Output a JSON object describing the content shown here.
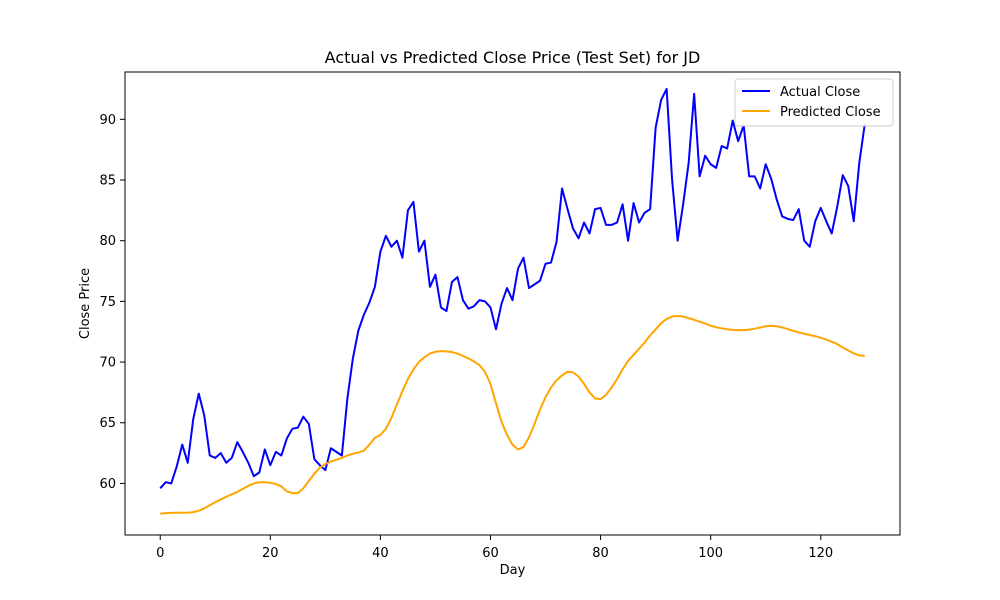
{
  "chart_data": {
    "type": "line",
    "title": "Actual vs Predicted Close Price (Test Set) for JD",
    "xlabel": "Day",
    "ylabel": "Close Price",
    "xlim": [
      -6.4,
      134.4
    ],
    "ylim": [
      55.75,
      93.9
    ],
    "xticks": [
      0,
      20,
      40,
      60,
      80,
      100,
      120
    ],
    "yticks": [
      60,
      65,
      70,
      75,
      80,
      85,
      90
    ],
    "legend_position": "top-right",
    "grid": false,
    "series": [
      {
        "name": "Actual Close",
        "color": "#0000ff",
        "x": [
          0,
          1,
          2,
          3,
          4,
          5,
          6,
          7,
          8,
          9,
          10,
          11,
          12,
          13,
          14,
          15,
          16,
          17,
          18,
          19,
          20,
          21,
          22,
          23,
          24,
          25,
          26,
          27,
          28,
          29,
          30,
          31,
          32,
          33,
          34,
          35,
          36,
          37,
          38,
          39,
          40,
          41,
          42,
          43,
          44,
          45,
          46,
          47,
          48,
          49,
          50,
          51,
          52,
          53,
          54,
          55,
          56,
          57,
          58,
          59,
          60,
          61,
          62,
          63,
          64,
          65,
          66,
          67,
          68,
          69,
          70,
          71,
          72,
          73,
          74,
          75,
          76,
          77,
          78,
          79,
          80,
          81,
          82,
          83,
          84,
          85,
          86,
          87,
          88,
          89,
          90,
          91,
          92,
          93,
          94,
          95,
          96,
          97,
          98,
          99,
          100,
          101,
          102,
          103,
          104,
          105,
          106,
          107,
          108,
          109,
          110,
          111,
          112,
          113,
          114,
          115,
          116,
          117,
          118,
          119,
          120,
          121,
          122,
          123,
          124,
          125,
          126,
          127,
          128
        ],
        "values": [
          59.6,
          60.1,
          60.0,
          61.4,
          63.2,
          61.7,
          65.3,
          67.4,
          65.6,
          62.3,
          62.1,
          62.5,
          61.7,
          62.1,
          63.4,
          62.6,
          61.7,
          60.6,
          60.9,
          62.8,
          61.5,
          62.6,
          62.3,
          63.7,
          64.5,
          64.6,
          65.5,
          64.9,
          62.0,
          61.5,
          61.1,
          62.9,
          62.6,
          62.3,
          67.0,
          70.3,
          72.6,
          73.9,
          74.9,
          76.2,
          79.1,
          80.4,
          79.5,
          80.0,
          78.6,
          82.5,
          83.2,
          79.1,
          80.0,
          76.2,
          77.2,
          74.5,
          74.2,
          76.6,
          77.0,
          75.1,
          74.4,
          74.6,
          75.1,
          75.0,
          74.5,
          72.7,
          74.8,
          76.1,
          75.1,
          77.7,
          78.6,
          76.1,
          76.4,
          76.7,
          78.1,
          78.2,
          79.9,
          84.3,
          82.6,
          81.0,
          80.2,
          81.5,
          80.6,
          82.6,
          82.7,
          81.3,
          81.3,
          81.5,
          83.0,
          80.0,
          83.1,
          81.5,
          82.3,
          82.6,
          89.3,
          91.6,
          92.5,
          85.0,
          80.0,
          83.0,
          86.4,
          92.1,
          85.3,
          87.0,
          86.3,
          86.0,
          87.8,
          87.6,
          89.9,
          88.2,
          89.5,
          85.3,
          85.3,
          84.3,
          86.3,
          85.1,
          83.4,
          82.0,
          81.8,
          81.7,
          82.6,
          80.0,
          79.5,
          81.6,
          82.7,
          81.6,
          80.6,
          82.8,
          85.4,
          84.5,
          81.6,
          86.4,
          89.6
        ]
      },
      {
        "name": "Predicted Close",
        "color": "#ffa500",
        "x": [
          0,
          1,
          2,
          3,
          4,
          5,
          6,
          7,
          8,
          9,
          10,
          11,
          12,
          13,
          14,
          15,
          16,
          17,
          18,
          19,
          20,
          21,
          22,
          23,
          24,
          25,
          26,
          27,
          28,
          29,
          30,
          31,
          32,
          33,
          34,
          35,
          36,
          37,
          38,
          39,
          40,
          41,
          42,
          43,
          44,
          45,
          46,
          47,
          48,
          49,
          50,
          51,
          52,
          53,
          54,
          55,
          56,
          57,
          58,
          59,
          60,
          61,
          62,
          63,
          64,
          65,
          66,
          67,
          68,
          69,
          70,
          71,
          72,
          73,
          74,
          75,
          76,
          77,
          78,
          79,
          80,
          81,
          82,
          83,
          84,
          85,
          86,
          87,
          88,
          89,
          90,
          91,
          92,
          93,
          94,
          95,
          96,
          97,
          98,
          99,
          100,
          101,
          102,
          103,
          104,
          105,
          106,
          107,
          108,
          109,
          110,
          111,
          112,
          113,
          114,
          115,
          116,
          117,
          118,
          119,
          120,
          121,
          122,
          123,
          124,
          125,
          126,
          127,
          128
        ],
        "values": [
          57.5,
          57.55,
          57.57,
          57.58,
          57.58,
          57.58,
          57.63,
          57.75,
          57.95,
          58.2,
          58.45,
          58.68,
          58.9,
          59.1,
          59.3,
          59.55,
          59.8,
          60.0,
          60.1,
          60.1,
          60.05,
          59.95,
          59.75,
          59.35,
          59.2,
          59.2,
          59.6,
          60.2,
          60.8,
          61.3,
          61.6,
          61.8,
          61.95,
          62.1,
          62.3,
          62.45,
          62.55,
          62.7,
          63.2,
          63.75,
          64.0,
          64.5,
          65.4,
          66.5,
          67.6,
          68.6,
          69.4,
          70.0,
          70.4,
          70.7,
          70.85,
          70.9,
          70.88,
          70.82,
          70.7,
          70.5,
          70.3,
          70.05,
          69.75,
          69.2,
          68.2,
          66.6,
          65.1,
          64.0,
          63.2,
          62.8,
          63.0,
          63.8,
          64.9,
          66.1,
          67.1,
          67.9,
          68.5,
          68.9,
          69.2,
          69.15,
          68.8,
          68.2,
          67.5,
          67.0,
          66.95,
          67.3,
          67.9,
          68.6,
          69.4,
          70.1,
          70.6,
          71.1,
          71.6,
          72.2,
          72.7,
          73.2,
          73.55,
          73.75,
          73.8,
          73.75,
          73.62,
          73.48,
          73.33,
          73.17,
          73.0,
          72.87,
          72.78,
          72.7,
          72.65,
          72.63,
          72.63,
          72.67,
          72.75,
          72.85,
          72.95,
          72.98,
          72.95,
          72.85,
          72.72,
          72.57,
          72.45,
          72.33,
          72.23,
          72.13,
          72.0,
          71.85,
          71.68,
          71.48,
          71.2,
          70.95,
          70.72,
          70.55,
          70.5
        ]
      }
    ]
  }
}
